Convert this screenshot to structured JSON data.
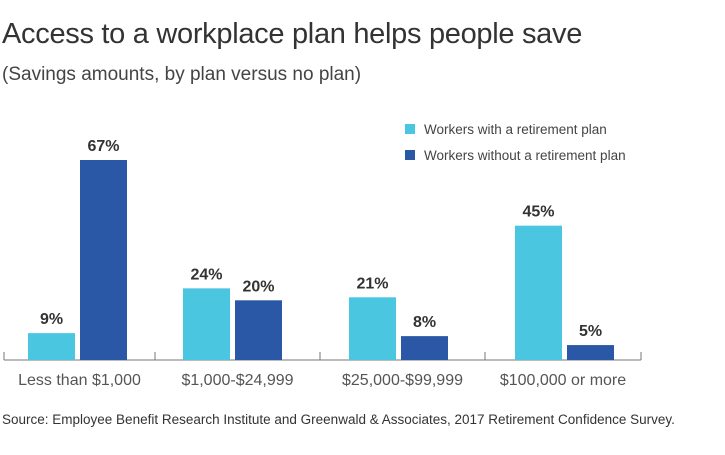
{
  "chart_data": {
    "type": "bar",
    "title": "Access to a workplace plan helps people save",
    "subtitle": "(Savings amounts, by plan versus no plan)",
    "categories": [
      "Less than $1,000",
      "$1,000-$24,999",
      "$25,000-$99,999",
      "$100,000 or more"
    ],
    "series": [
      {
        "name": "Workers with a retirement plan",
        "values": [
          9,
          24,
          21,
          45
        ],
        "color": "#4AC6E0"
      },
      {
        "name": "Workers without a retirement plan",
        "values": [
          67,
          20,
          8,
          5
        ],
        "color": "#2A58A6"
      }
    ],
    "value_suffix": "%",
    "xlabel": "",
    "ylabel": "",
    "ylim": [
      0,
      67
    ],
    "grid": false,
    "legend_position": "top-right",
    "source": "Source: Employee Benefit Research Institute and Greenwald & Associates, 2017 Retirement Confidence Survey."
  }
}
